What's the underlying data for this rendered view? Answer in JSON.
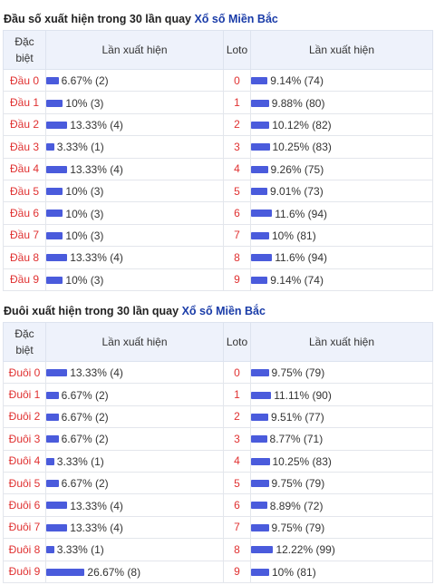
{
  "colors": {
    "bar": "#4a5bdc",
    "label_red": "#e03131",
    "link_blue": "#1a3ca8",
    "header_bg": "#eef2fb"
  },
  "dau": {
    "title_prefix": "Đầu số xuất hiện trong 30 lần quay",
    "title_link": "Xổ số Miền Bắc",
    "headers": {
      "col1": "Đặc biệt",
      "col2": "Lần xuất hiện",
      "col3": "Loto",
      "col4": "Lần xuất hiện"
    },
    "rows": [
      {
        "label": "Đầu 0",
        "value": "6.67% (2)",
        "pct": 6.67,
        "loto": "0",
        "loto_value": "9.14% (74)",
        "loto_pct": 9.14
      },
      {
        "label": "Đầu 1",
        "value": "10% (3)",
        "pct": 10,
        "loto": "1",
        "loto_value": "9.88% (80)",
        "loto_pct": 9.88
      },
      {
        "label": "Đầu 2",
        "value": "13.33% (4)",
        "pct": 13.33,
        "loto": "2",
        "loto_value": "10.12% (82)",
        "loto_pct": 10.12
      },
      {
        "label": "Đầu 3",
        "value": "3.33% (1)",
        "pct": 3.33,
        "loto": "3",
        "loto_value": "10.25% (83)",
        "loto_pct": 10.25
      },
      {
        "label": "Đầu 4",
        "value": "13.33% (4)",
        "pct": 13.33,
        "loto": "4",
        "loto_value": "9.26% (75)",
        "loto_pct": 9.26
      },
      {
        "label": "Đầu 5",
        "value": "10% (3)",
        "pct": 10,
        "loto": "5",
        "loto_value": "9.01% (73)",
        "loto_pct": 9.01
      },
      {
        "label": "Đầu 6",
        "value": "10% (3)",
        "pct": 10,
        "loto": "6",
        "loto_value": "11.6% (94)",
        "loto_pct": 11.6
      },
      {
        "label": "Đầu 7",
        "value": "10% (3)",
        "pct": 10,
        "loto": "7",
        "loto_value": "10% (81)",
        "loto_pct": 10
      },
      {
        "label": "Đầu 8",
        "value": "13.33% (4)",
        "pct": 13.33,
        "loto": "8",
        "loto_value": "11.6% (94)",
        "loto_pct": 11.6
      },
      {
        "label": "Đầu 9",
        "value": "10% (3)",
        "pct": 10,
        "loto": "9",
        "loto_value": "9.14% (74)",
        "loto_pct": 9.14
      }
    ]
  },
  "duoi": {
    "title_prefix": "Đuôi xuất hiện trong 30 lần quay",
    "title_link": "Xổ số Miền Bắc",
    "headers": {
      "col1": "Đặc biệt",
      "col2": "Lần xuất hiện",
      "col3": "Loto",
      "col4": "Lần xuất hiện"
    },
    "rows": [
      {
        "label": "Đuôi 0",
        "value": "13.33% (4)",
        "pct": 13.33,
        "loto": "0",
        "loto_value": "9.75% (79)",
        "loto_pct": 9.75
      },
      {
        "label": "Đuôi 1",
        "value": "6.67% (2)",
        "pct": 6.67,
        "loto": "1",
        "loto_value": "11.11% (90)",
        "loto_pct": 11.11
      },
      {
        "label": "Đuôi 2",
        "value": "6.67% (2)",
        "pct": 6.67,
        "loto": "2",
        "loto_value": "9.51% (77)",
        "loto_pct": 9.51
      },
      {
        "label": "Đuôi 3",
        "value": "6.67% (2)",
        "pct": 6.67,
        "loto": "3",
        "loto_value": "8.77% (71)",
        "loto_pct": 8.77
      },
      {
        "label": "Đuôi 4",
        "value": "3.33% (1)",
        "pct": 3.33,
        "loto": "4",
        "loto_value": "10.25% (83)",
        "loto_pct": 10.25
      },
      {
        "label": "Đuôi 5",
        "value": "6.67% (2)",
        "pct": 6.67,
        "loto": "5",
        "loto_value": "9.75% (79)",
        "loto_pct": 9.75
      },
      {
        "label": "Đuôi 6",
        "value": "13.33% (4)",
        "pct": 13.33,
        "loto": "6",
        "loto_value": "8.89% (72)",
        "loto_pct": 8.89
      },
      {
        "label": "Đuôi 7",
        "value": "13.33% (4)",
        "pct": 13.33,
        "loto": "7",
        "loto_value": "9.75% (79)",
        "loto_pct": 9.75
      },
      {
        "label": "Đuôi 8",
        "value": "3.33% (1)",
        "pct": 3.33,
        "loto": "8",
        "loto_value": "12.22% (99)",
        "loto_pct": 12.22
      },
      {
        "label": "Đuôi 9",
        "value": "26.67% (8)",
        "pct": 26.67,
        "loto": "9",
        "loto_value": "10% (81)",
        "loto_pct": 10
      }
    ]
  }
}
